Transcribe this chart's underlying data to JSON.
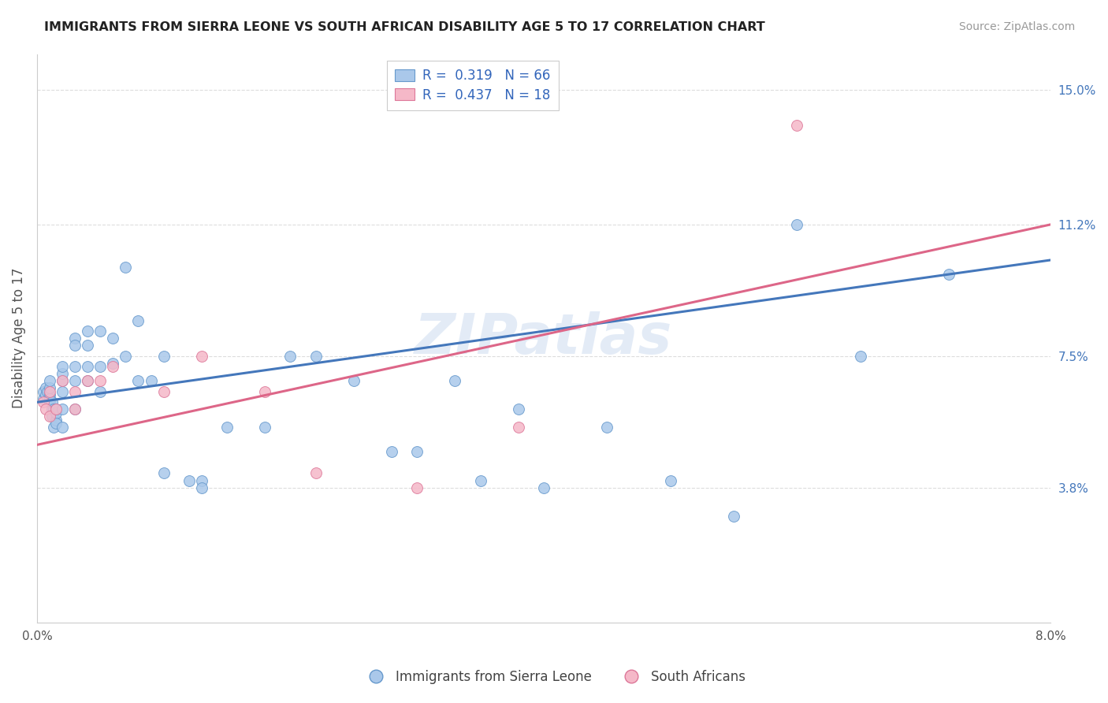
{
  "title": "IMMIGRANTS FROM SIERRA LEONE VS SOUTH AFRICAN DISABILITY AGE 5 TO 17 CORRELATION CHART",
  "source": "Source: ZipAtlas.com",
  "ylabel": "Disability Age 5 to 17",
  "xlim": [
    0.0,
    0.08
  ],
  "ylim": [
    0.0,
    0.16
  ],
  "xticks": [
    0.0,
    0.01,
    0.02,
    0.03,
    0.04,
    0.05,
    0.06,
    0.07,
    0.08
  ],
  "yticks_right": [
    0.038,
    0.075,
    0.112,
    0.15
  ],
  "ytick_labels_right": [
    "3.8%",
    "7.5%",
    "11.2%",
    "15.0%"
  ],
  "grid_color": "#dddddd",
  "background_color": "#ffffff",
  "series1_label": "Immigrants from Sierra Leone",
  "series1_color": "#aac8ea",
  "series1_edge_color": "#6699cc",
  "series1_R": 0.319,
  "series1_N": 66,
  "series1_line_color": "#4477bb",
  "series2_label": "South Africans",
  "series2_color": "#f5b8c8",
  "series2_edge_color": "#dd7799",
  "series2_R": 0.437,
  "series2_N": 18,
  "series2_line_color": "#dd6688",
  "watermark": "ZIPatlas",
  "marker_size": 100,
  "blue_x": [
    0.0005,
    0.0005,
    0.0007,
    0.0007,
    0.0008,
    0.001,
    0.001,
    0.001,
    0.001,
    0.001,
    0.0012,
    0.0012,
    0.0012,
    0.0013,
    0.0013,
    0.0015,
    0.0015,
    0.0015,
    0.0015,
    0.002,
    0.002,
    0.002,
    0.002,
    0.002,
    0.002,
    0.003,
    0.003,
    0.003,
    0.003,
    0.003,
    0.004,
    0.004,
    0.004,
    0.004,
    0.005,
    0.005,
    0.005,
    0.006,
    0.006,
    0.007,
    0.007,
    0.008,
    0.008,
    0.009,
    0.01,
    0.01,
    0.012,
    0.013,
    0.013,
    0.015,
    0.018,
    0.02,
    0.022,
    0.025,
    0.028,
    0.03,
    0.033,
    0.035,
    0.038,
    0.04,
    0.045,
    0.05,
    0.055,
    0.06,
    0.065,
    0.072
  ],
  "blue_y": [
    0.063,
    0.065,
    0.064,
    0.066,
    0.065,
    0.062,
    0.064,
    0.066,
    0.068,
    0.063,
    0.06,
    0.062,
    0.058,
    0.06,
    0.055,
    0.057,
    0.059,
    0.056,
    0.06,
    0.068,
    0.07,
    0.072,
    0.065,
    0.06,
    0.055,
    0.08,
    0.078,
    0.072,
    0.068,
    0.06,
    0.082,
    0.078,
    0.072,
    0.068,
    0.082,
    0.072,
    0.065,
    0.08,
    0.073,
    0.1,
    0.075,
    0.085,
    0.068,
    0.068,
    0.075,
    0.042,
    0.04,
    0.04,
    0.038,
    0.055,
    0.055,
    0.075,
    0.075,
    0.068,
    0.048,
    0.048,
    0.068,
    0.04,
    0.06,
    0.038,
    0.055,
    0.04,
    0.03,
    0.112,
    0.075,
    0.098
  ],
  "pink_x": [
    0.0005,
    0.0007,
    0.001,
    0.001,
    0.0015,
    0.002,
    0.003,
    0.003,
    0.004,
    0.005,
    0.006,
    0.01,
    0.013,
    0.018,
    0.022,
    0.03,
    0.038,
    0.06
  ],
  "pink_y": [
    0.062,
    0.06,
    0.065,
    0.058,
    0.06,
    0.068,
    0.065,
    0.06,
    0.068,
    0.068,
    0.072,
    0.065,
    0.075,
    0.065,
    0.042,
    0.038,
    0.055,
    0.14
  ]
}
